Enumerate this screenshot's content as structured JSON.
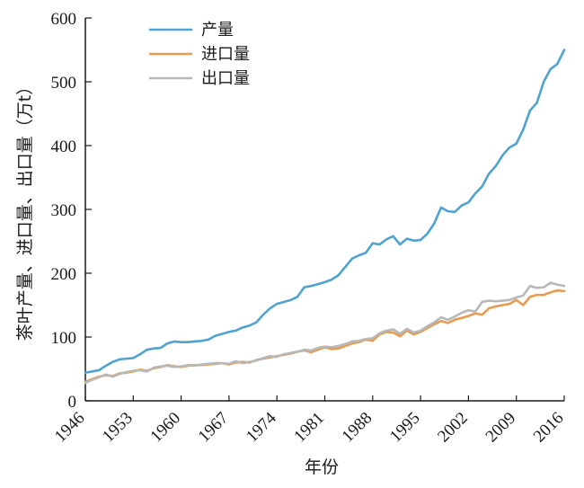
{
  "chart_data": {
    "type": "line",
    "title": "",
    "xlabel": "年份",
    "ylabel": "茶叶产量、进口量、出口量（万t）",
    "xlim": [
      1946,
      2016
    ],
    "ylim": [
      0,
      600
    ],
    "x_ticks": [
      "1946",
      "1953",
      "1960",
      "1967",
      "1974",
      "1981",
      "1988",
      "1995",
      "2002",
      "2009",
      "2016"
    ],
    "y_ticks": [
      "0",
      "100",
      "200",
      "300",
      "400",
      "500",
      "600"
    ],
    "grid": false,
    "legend_position": "top-left",
    "x": [
      1946,
      1947,
      1948,
      1949,
      1950,
      1951,
      1952,
      1953,
      1954,
      1955,
      1956,
      1957,
      1958,
      1959,
      1960,
      1961,
      1962,
      1963,
      1964,
      1965,
      1966,
      1967,
      1968,
      1969,
      1970,
      1971,
      1972,
      1973,
      1974,
      1975,
      1976,
      1977,
      1978,
      1979,
      1980,
      1981,
      1982,
      1983,
      1984,
      1985,
      1986,
      1987,
      1988,
      1989,
      1990,
      1991,
      1992,
      1993,
      1994,
      1995,
      1996,
      1997,
      1998,
      1999,
      2000,
      2001,
      2002,
      2003,
      2004,
      2005,
      2006,
      2007,
      2008,
      2009,
      2010,
      2011,
      2012,
      2013,
      2014,
      2015,
      2016
    ],
    "series": [
      {
        "name": "产量",
        "color": "#4fa3d1",
        "values": [
          44,
          46,
          48,
          55,
          61,
          65,
          66,
          67,
          73,
          80,
          82,
          83,
          90,
          93,
          92,
          92,
          93,
          94,
          96,
          102,
          105,
          108,
          110,
          115,
          118,
          123,
          135,
          145,
          152,
          155,
          158,
          163,
          178,
          180,
          183,
          186,
          190,
          197,
          210,
          223,
          228,
          232,
          247,
          245,
          253,
          258,
          245,
          254,
          251,
          252,
          262,
          278,
          303,
          297,
          296,
          306,
          311,
          325,
          336,
          356,
          368,
          385,
          397,
          403,
          425,
          455,
          467,
          500,
          520,
          528,
          550
        ]
      },
      {
        "name": "进口量",
        "color": "#e89a4e",
        "values": [
          30,
          34,
          38,
          40,
          39,
          43,
          44,
          46,
          49,
          47,
          51,
          53,
          56,
          54,
          53,
          55,
          56,
          56,
          57,
          58,
          59,
          57,
          60,
          61,
          60,
          64,
          66,
          68,
          70,
          72,
          74,
          77,
          79,
          76,
          80,
          84,
          81,
          82,
          86,
          90,
          92,
          96,
          94,
          104,
          108,
          107,
          101,
          110,
          104,
          108,
          114,
          120,
          125,
          122,
          127,
          130,
          133,
          137,
          135,
          145,
          148,
          150,
          152,
          158,
          150,
          163,
          166,
          166,
          170,
          173,
          172
        ]
      },
      {
        "name": "出口量",
        "color": "#b8b8b8",
        "values": [
          28,
          33,
          37,
          41,
          38,
          42,
          45,
          47,
          48,
          46,
          52,
          54,
          55,
          53,
          54,
          56,
          55,
          57,
          58,
          59,
          59,
          58,
          62,
          59,
          61,
          63,
          67,
          70,
          69,
          73,
          75,
          77,
          80,
          79,
          83,
          85,
          84,
          86,
          89,
          93,
          94,
          97,
          98,
          106,
          110,
          112,
          105,
          113,
          107,
          110,
          117,
          123,
          131,
          127,
          132,
          138,
          142,
          140,
          155,
          157,
          156,
          157,
          158,
          162,
          165,
          180,
          177,
          178,
          185,
          182,
          180
        ]
      }
    ]
  }
}
